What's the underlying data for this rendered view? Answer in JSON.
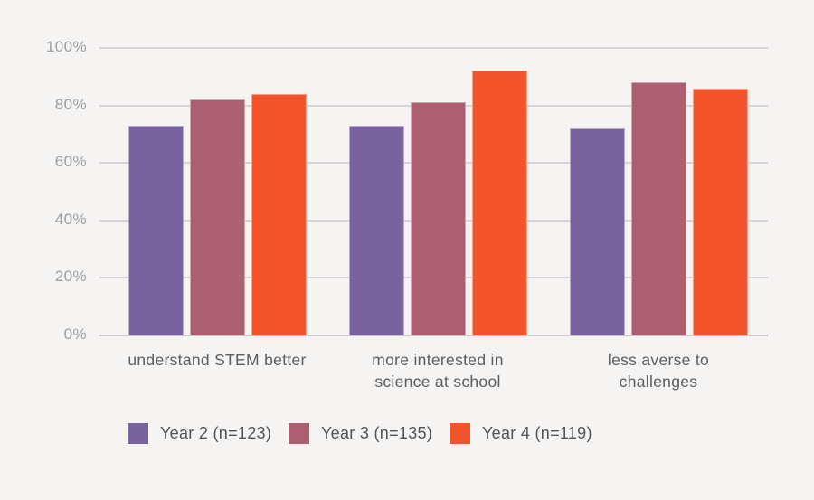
{
  "page": {
    "background_color": "#f5f4f2"
  },
  "chart_data": {
    "type": "bar",
    "title": "",
    "xlabel": "",
    "ylabel": "",
    "categories": [
      "understand STEM better",
      "more interested in\nscience at school",
      "less averse to\nchallenges"
    ],
    "series": [
      {
        "name": "Year 2 (n=123)",
        "color": "#78639e",
        "values": [
          73,
          73,
          72
        ]
      },
      {
        "name": "Year 3 (n=135)",
        "color": "#ac5f70",
        "values": [
          82,
          81,
          88
        ]
      },
      {
        "name": "Year 4 (n=119)",
        "color": "#f4542c",
        "values": [
          84,
          92,
          86
        ]
      }
    ],
    "ylim": [
      0,
      100
    ],
    "ytick_step": 20,
    "ytick_labels": [
      "0%",
      "20%",
      "40%",
      "60%",
      "80%",
      "100%"
    ],
    "grid": true,
    "legend_position": "bottom"
  },
  "style": {
    "grid_color": "#d6d4d4",
    "axis_line_color": "#c8c6c6",
    "ytick_label_color": "#9e9da3",
    "category_label_color": "#5d5d61",
    "legend_text_color": "#525156"
  }
}
